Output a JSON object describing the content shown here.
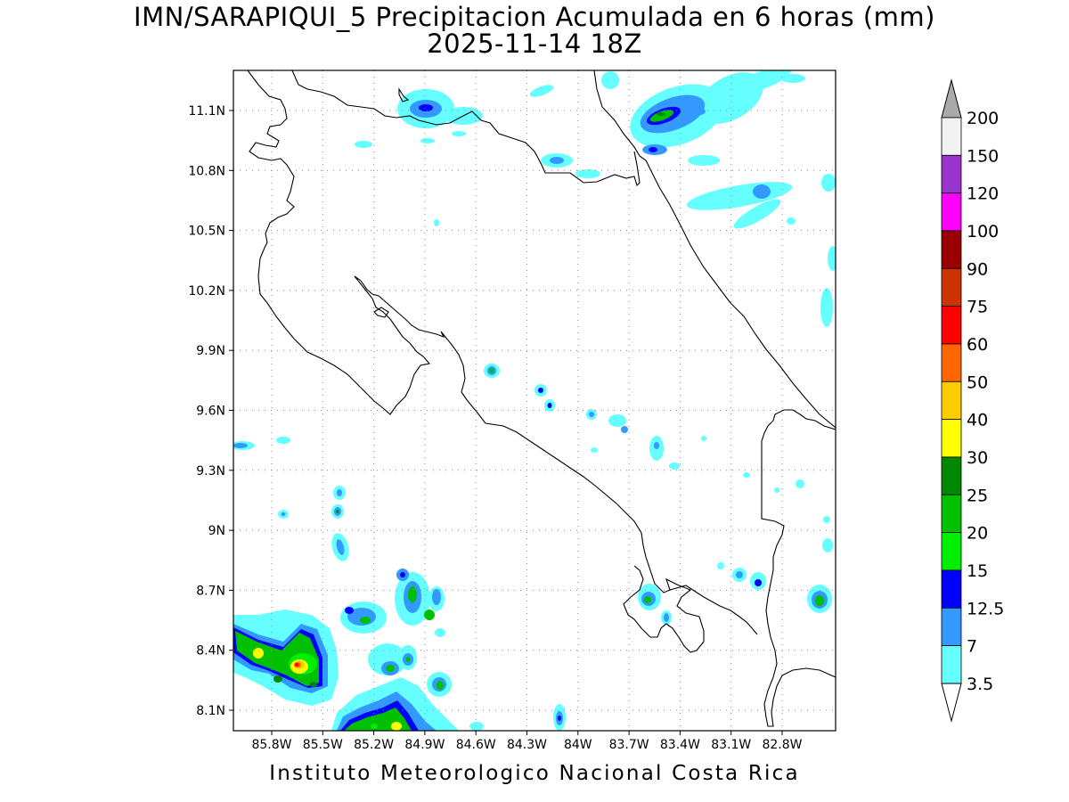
{
  "header": {
    "title_line1": "IMN/SARAPIQUI_5 Precipitacion Acumulada en 6 horas (mm)",
    "title_line2": "2025-11-14 18Z"
  },
  "footer": {
    "credit": "Instituto Meteorologico Nacional Costa Rica"
  },
  "map": {
    "lon_labels": [
      "85.8W",
      "85.5W",
      "85.2W",
      "84.9W",
      "84.6W",
      "84.3W",
      "84W",
      "83.7W",
      "83.4W",
      "83.1W",
      "82.8W"
    ],
    "lat_labels": [
      "11.1N",
      "10.8N",
      "10.5N",
      "10.2N",
      "9.9N",
      "9.6N",
      "9.3N",
      "9N",
      "8.7N",
      "8.4N",
      "8.1N"
    ],
    "grid": "dotted",
    "coastline_color": "#000000"
  },
  "colorbar": {
    "labels": [
      "3.5",
      "7",
      "12.5",
      "15",
      "20",
      "25",
      "30",
      "40",
      "50",
      "60",
      "75",
      "90",
      "100",
      "120",
      "150",
      "200"
    ],
    "colors": [
      "#66ffff",
      "#3399ff",
      "#0000ff",
      "#00ee00",
      "#00c000",
      "#008800",
      "#ffff00",
      "#ffcc00",
      "#ff6600",
      "#ff0000",
      "#cc3300",
      "#990000",
      "#ff00ff",
      "#9933cc",
      "#f2f2f2",
      "#aaaaaa"
    ],
    "over_color": "#aaaaaa",
    "under_color": "#ffffff"
  },
  "legend_colors": {
    "c35": "#66ffff",
    "c7": "#3399ff",
    "c125": "#0000ff",
    "c15": "#00ee00",
    "c20": "#00c000",
    "c25": "#008800",
    "c30": "#ffff00",
    "c40": "#ffcc00",
    "c50": "#ff6600",
    "c60": "#ff0000"
  }
}
